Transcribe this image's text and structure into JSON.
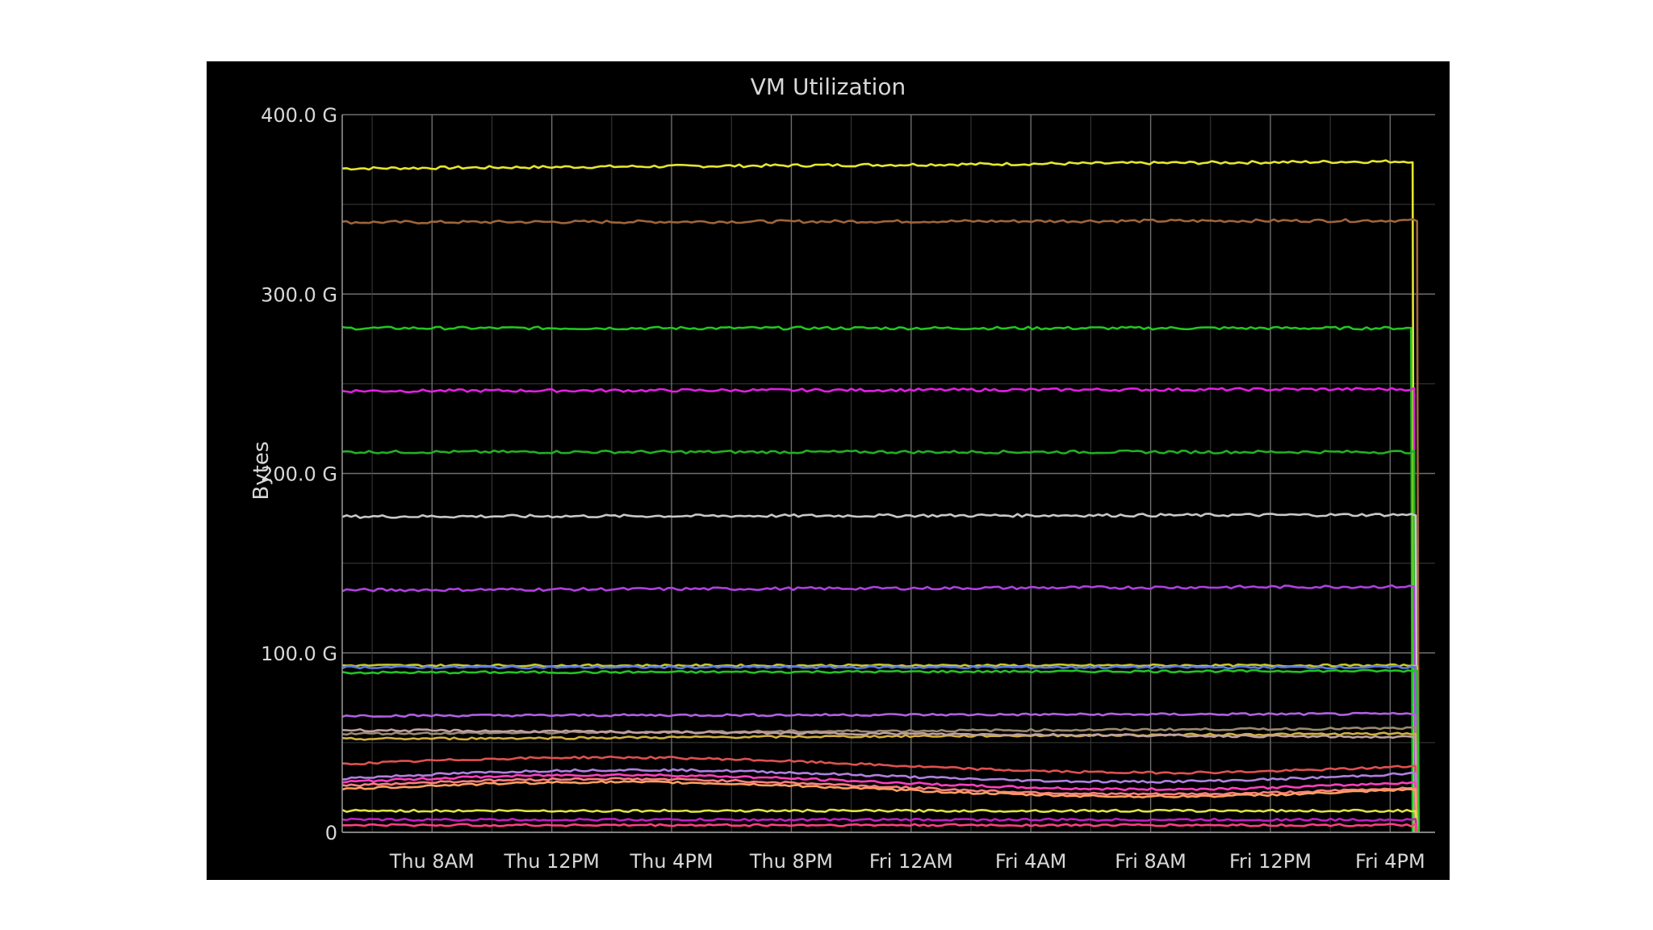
{
  "chart_data": {
    "type": "line",
    "title": "VM Utilization",
    "ylabel": "Bytes",
    "xlabel": "",
    "ylim": [
      0,
      400
    ],
    "y_unit": "G",
    "yticks": [
      {
        "value": 0,
        "label": "0"
      },
      {
        "value": 100,
        "label": "100.0 G"
      },
      {
        "value": 200,
        "label": "200.0 G"
      },
      {
        "value": 300,
        "label": "300.0 G"
      },
      {
        "value": 400,
        "label": "400.0 G"
      }
    ],
    "xlim": [
      5,
      41.5
    ],
    "xticks": [
      {
        "value": 8,
        "label": "Thu  8AM"
      },
      {
        "value": 12,
        "label": "Thu 12PM"
      },
      {
        "value": 16,
        "label": "Thu  4PM"
      },
      {
        "value": 20,
        "label": "Thu  8PM"
      },
      {
        "value": 24,
        "label": "Fri 12AM"
      },
      {
        "value": 28,
        "label": "Fri  4AM"
      },
      {
        "value": 32,
        "label": "Fri  8AM"
      },
      {
        "value": 36,
        "label": "Fri 12PM"
      },
      {
        "value": 40,
        "label": "Fri  4PM"
      }
    ],
    "grid": true,
    "legend": "none",
    "series": [
      {
        "color": "#e6e62e",
        "start": 370,
        "end": 374,
        "dropAt": 40.75
      },
      {
        "color": "#a0643a",
        "start": 340,
        "end": 341,
        "dropAt": 40.9
      },
      {
        "color": "#22c422",
        "start": 281,
        "end": 281,
        "dropAt": 40.7
      },
      {
        "color": "#e020e0",
        "start": 246,
        "end": 247,
        "dropAt": 40.8
      },
      {
        "color": "#22b022",
        "start": 212,
        "end": 212,
        "dropAt": 40.8
      },
      {
        "color": "#c8c8c8",
        "start": 176,
        "end": 177,
        "dropAt": 40.85
      },
      {
        "color": "#b040e0",
        "start": 135,
        "end": 137,
        "dropAt": 40.8
      },
      {
        "color": "#c8c82a",
        "start": 93,
        "end": 93,
        "dropAt": 40.9
      },
      {
        "color": "#5a7ae0",
        "start": 92,
        "end": 92,
        "dropAt": 40.85
      },
      {
        "color": "#22c422",
        "start": 89,
        "end": 90,
        "dropAt": 40.9
      },
      {
        "color": "#b060e0",
        "start": 65,
        "end": 66,
        "dropAt": 40.85
      },
      {
        "color": "#9a8a70",
        "start": 55,
        "end": 58,
        "dropAt": 40.85
      },
      {
        "color": "#d0b040",
        "start": 52,
        "end": 55,
        "dropAt": 40.85
      },
      {
        "color": "#c0a0a0",
        "start": 57,
        "end": 53,
        "dropAt": 40.85
      },
      {
        "color": "#e05050",
        "start": 38,
        "end": 37,
        "dropAt": 40.85
      },
      {
        "color": "#b080e0",
        "start": 30,
        "end": 33,
        "dropAt": 40.85
      },
      {
        "color": "#ff40c0",
        "start": 28,
        "end": 28,
        "dropAt": 40.85
      },
      {
        "color": "#ff8080",
        "start": 26,
        "end": 25,
        "dropAt": 40.85
      },
      {
        "color": "#ffa060",
        "start": 24,
        "end": 24,
        "dropAt": 40.85
      },
      {
        "color": "#e0e040",
        "start": 12,
        "end": 12,
        "dropAt": 40.85
      },
      {
        "color": "#c020c0",
        "start": 7,
        "end": 7,
        "dropAt": 40.85
      },
      {
        "color": "#ff4080",
        "start": 4,
        "end": 4,
        "dropAt": 40.85
      }
    ]
  }
}
